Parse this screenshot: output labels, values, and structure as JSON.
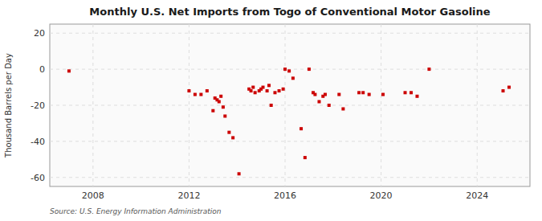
{
  "chart_data": {
    "type": "scatter",
    "title": "Monthly U.S. Net Imports from Togo of Conventional Motor Gasoline",
    "ylabel": "Thousand Barrels per Day",
    "annotations": [
      "Source: U.S. Energy Information Administration"
    ],
    "color": "#cc0000",
    "marker": "square",
    "grid": true,
    "xlim": [
      2006.2,
      2026.2
    ],
    "xticks": [
      2008,
      2012,
      2016,
      2020,
      2024
    ],
    "ylim": [
      -65,
      25
    ],
    "yticks": [
      -60,
      -40,
      -20,
      0,
      20
    ],
    "x": [
      2007.0,
      2012.0,
      2012.25,
      2012.5,
      2012.75,
      2013.0,
      2013.08,
      2013.17,
      2013.25,
      2013.33,
      2013.42,
      2013.5,
      2013.67,
      2013.83,
      2014.08,
      2014.5,
      2014.58,
      2014.67,
      2014.75,
      2014.92,
      2015.0,
      2015.08,
      2015.25,
      2015.33,
      2015.42,
      2015.58,
      2015.75,
      2015.92,
      2016.0,
      2016.17,
      2016.33,
      2016.67,
      2016.83,
      2017.0,
      2017.17,
      2017.25,
      2017.42,
      2017.58,
      2017.67,
      2017.83,
      2018.25,
      2018.42,
      2019.08,
      2019.25,
      2019.5,
      2020.08,
      2021.0,
      2021.25,
      2021.5,
      2022.0,
      2025.08,
      2025.33
    ],
    "values": [
      -1,
      -12,
      -14,
      -14,
      -12,
      -23,
      -16,
      -17,
      -18,
      -15,
      -21,
      -26,
      -35,
      -38,
      -58,
      -11,
      -12,
      -10,
      -13,
      -12,
      -11,
      -10,
      -12,
      -9,
      -20,
      -13,
      -12,
      -11,
      0,
      -1,
      -5,
      -33,
      -49,
      0,
      -13,
      -14,
      -18,
      -15,
      -14,
      -20,
      -14,
      -22,
      -13,
      -13,
      -14,
      -14,
      -13,
      -13,
      -15,
      0,
      -12,
      -10
    ]
  }
}
